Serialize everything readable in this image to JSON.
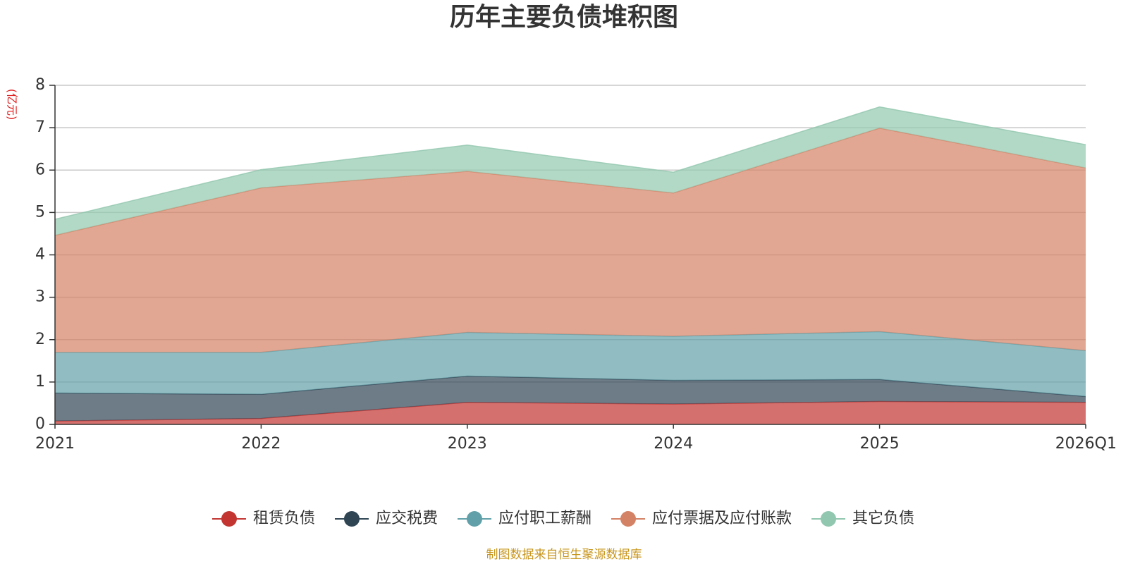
{
  "colors": {
    "rent": "#c23531",
    "tax": "#2f4554",
    "salary": "#61a0a8",
    "payable": "#d48265",
    "other": "#91c7ae",
    "unit_color": "#e01f1f",
    "source_color": "#c8961e"
  },
  "chart_data": {
    "type": "area",
    "stacked": true,
    "title": "历年主要负债堆积图",
    "unit": "(亿元)",
    "categories": [
      "2021",
      "2022",
      "2023",
      "2024",
      "2025",
      "2026Q1"
    ],
    "y_ticks": [
      "0",
      "1",
      "2",
      "3",
      "4",
      "5",
      "6",
      "7",
      "8"
    ],
    "ylim": [
      0,
      8
    ],
    "grid": true,
    "legend_position": "bottom",
    "series": [
      {
        "key": "rent",
        "name": "租赁负债",
        "values": [
          0.08,
          0.14,
          0.52,
          0.48,
          0.54,
          0.52
        ]
      },
      {
        "key": "tax",
        "name": "应交税费",
        "values": [
          0.66,
          0.57,
          0.62,
          0.56,
          0.52,
          0.14
        ]
      },
      {
        "key": "salary",
        "name": "应付职工薪酬",
        "values": [
          0.96,
          0.99,
          1.03,
          1.04,
          1.13,
          1.08
        ]
      },
      {
        "key": "payable",
        "name": "应付票据及应付账款",
        "values": [
          2.76,
          3.88,
          3.8,
          3.38,
          4.8,
          4.31
        ]
      },
      {
        "key": "other",
        "name": "其它负债",
        "values": [
          0.38,
          0.43,
          0.62,
          0.49,
          0.5,
          0.55
        ]
      }
    ]
  },
  "footer": {
    "source": "制图数据来自恒生聚源数据库"
  }
}
